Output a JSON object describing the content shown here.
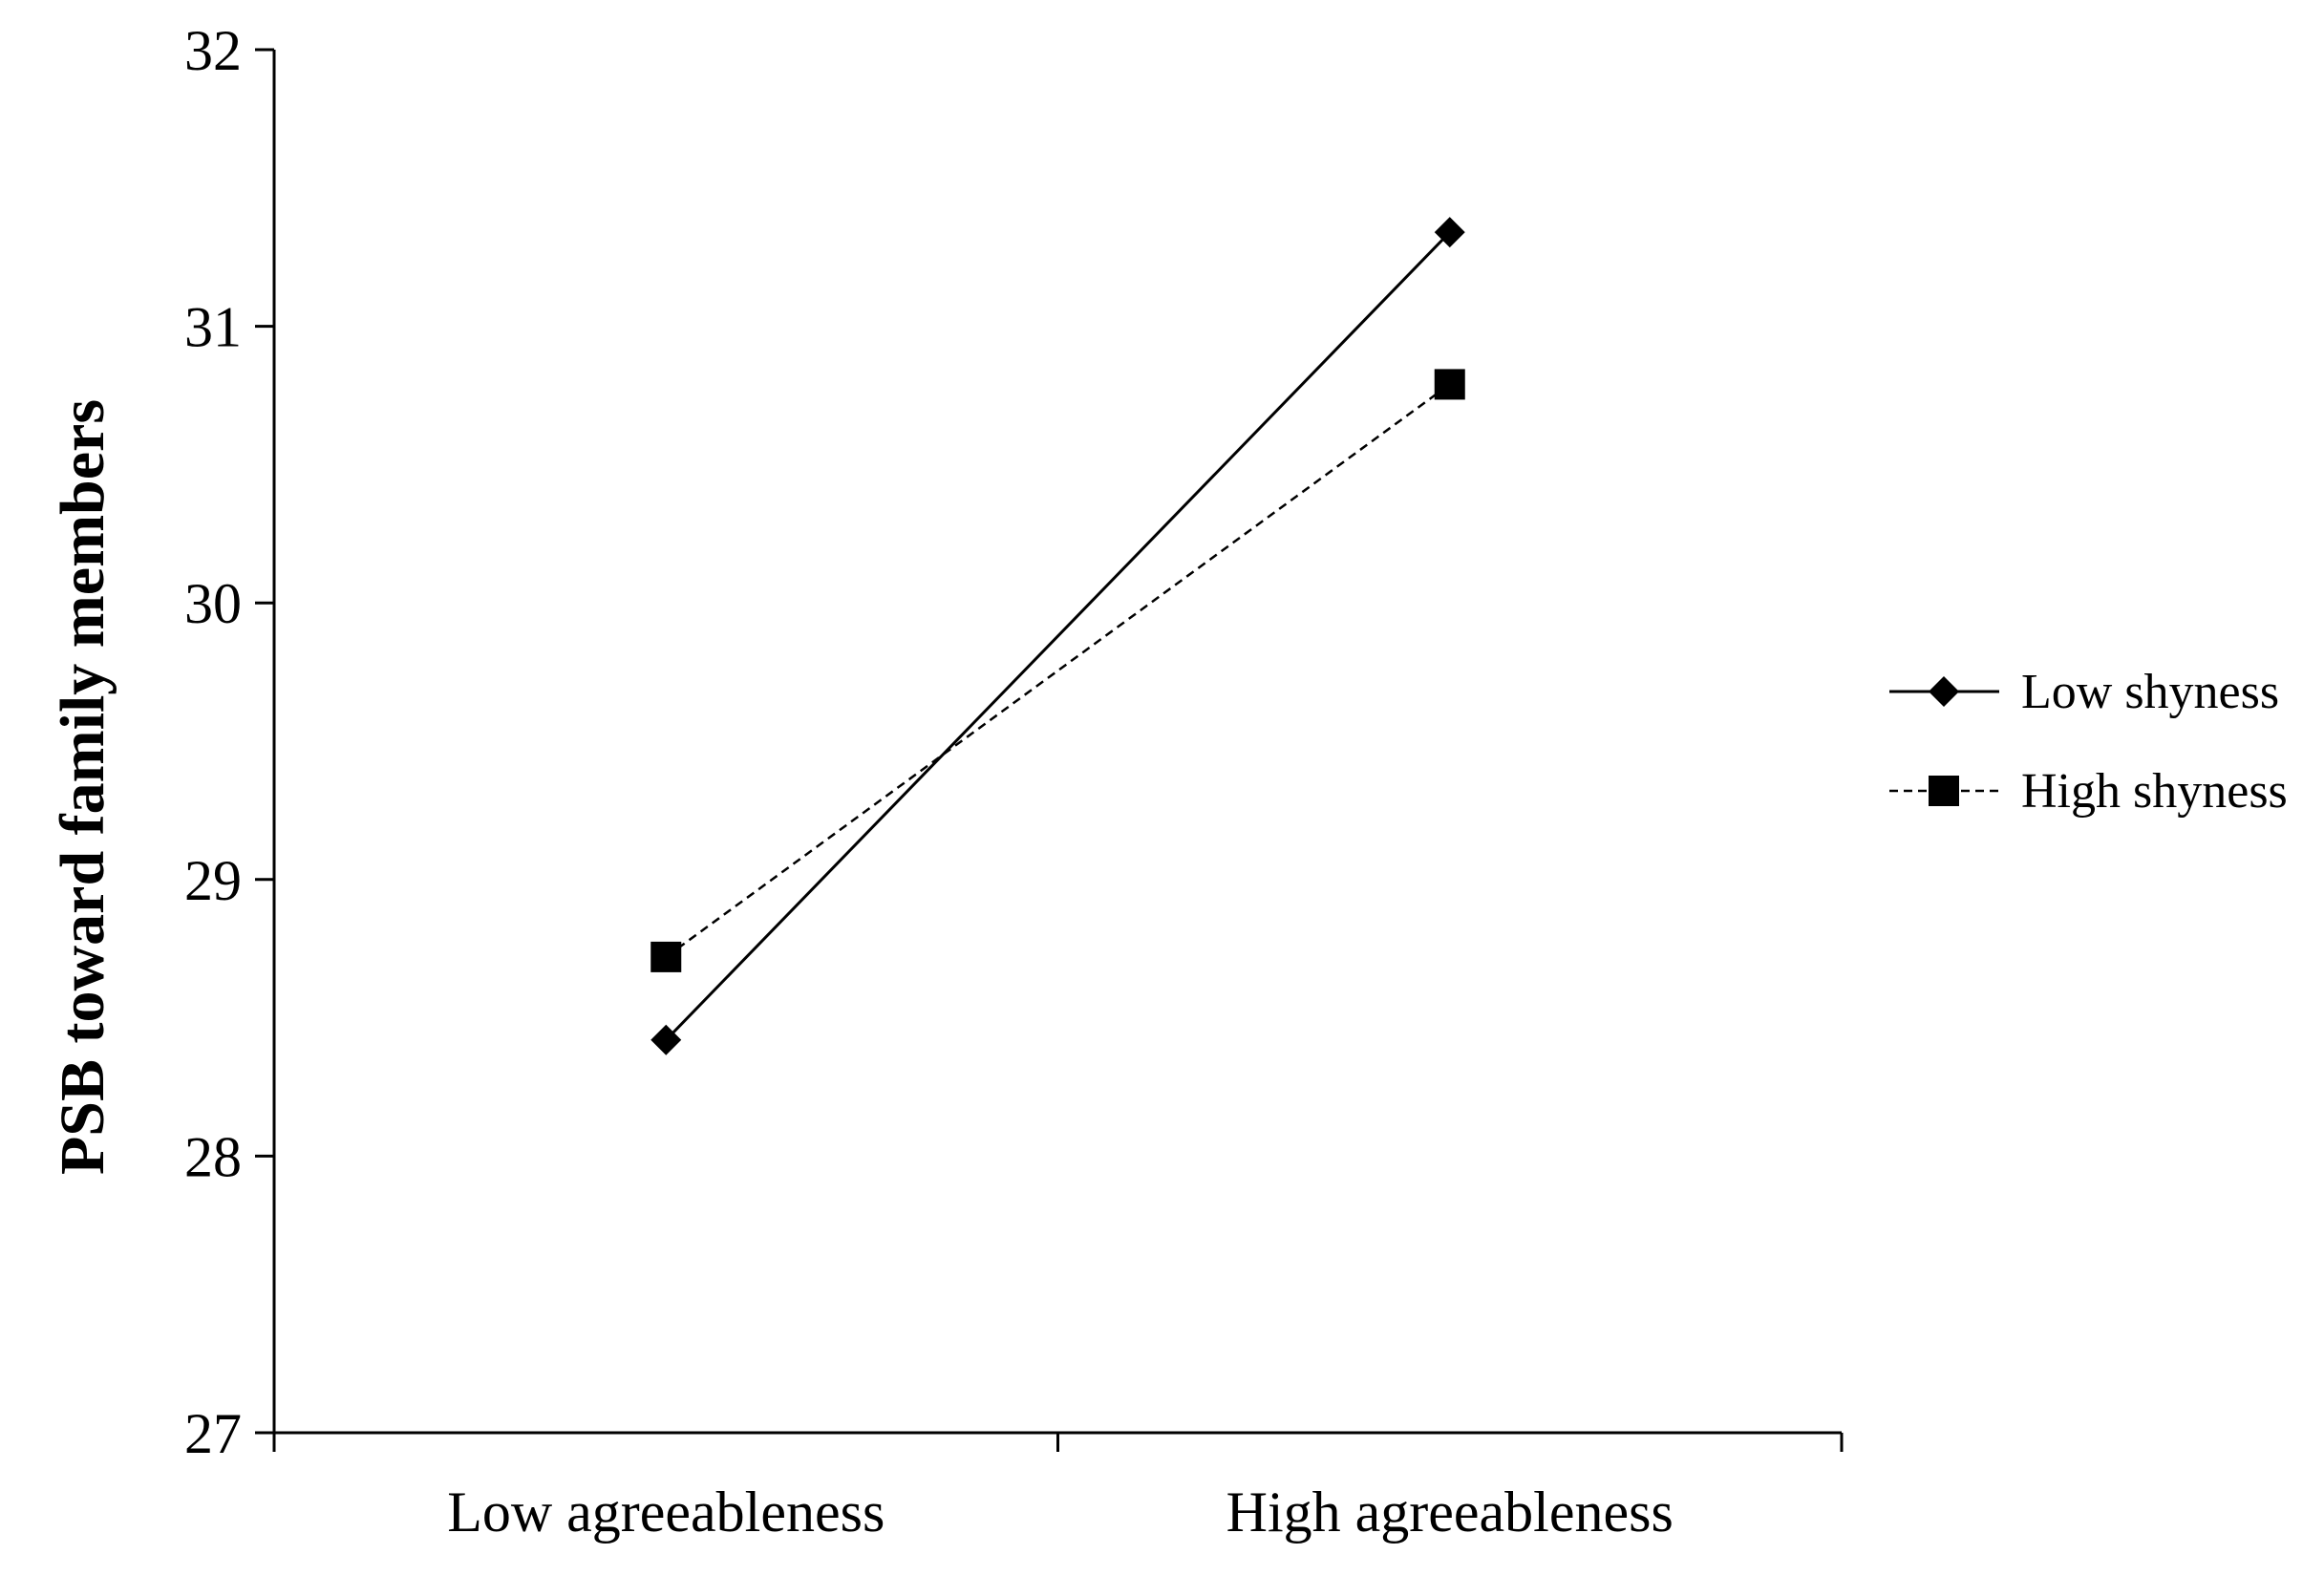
{
  "chart_data": {
    "type": "line",
    "ylabel": "PSB toward family members",
    "xlabel": "",
    "categories": [
      "Low agreeableness",
      "High agreeableness"
    ],
    "ylim": [
      27,
      32
    ],
    "yticks": [
      "27",
      "28",
      "29",
      "30",
      "31",
      "32"
    ],
    "grid": false,
    "legend_position": "right",
    "series": [
      {
        "name": "Low shyness",
        "values": [
          28.42,
          31.34
        ],
        "line_style": "solid",
        "marker": "diamond",
        "color": "#000000"
      },
      {
        "name": "High shyness",
        "values": [
          28.72,
          30.79
        ],
        "line_style": "dashed",
        "marker": "square",
        "color": "#000000"
      }
    ]
  }
}
